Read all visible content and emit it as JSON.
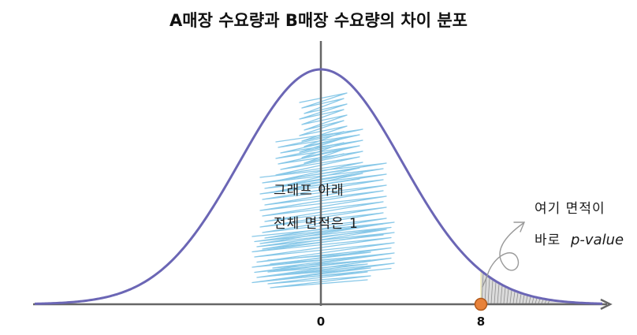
{
  "title": "A매장 수요량과 B매장 수요량의 차이 분포",
  "annotations": {
    "area_line1": "그래프 아래",
    "area_line2": "전체 면적은 1",
    "pvalue_line1": "여기 면적이",
    "pvalue_line2_prefix": "바로",
    "pvalue_line2_term": "p-value"
  },
  "axis": {
    "ticks": [
      {
        "value": 0,
        "label": "0"
      },
      {
        "value": 8,
        "label": "8"
      }
    ]
  },
  "marker": {
    "value": 8
  },
  "colors": {
    "curve": "#6b66b5",
    "axis": "#666666",
    "scribble": "#7cc3e6",
    "tail_fill": "#c8c8c8",
    "marker_fill": "#e8823a",
    "marker_stroke": "#b25a1b"
  }
}
